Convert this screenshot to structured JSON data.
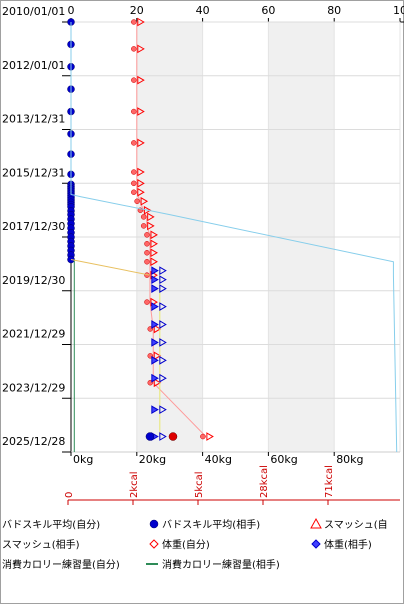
{
  "chart_data": {
    "type": "line",
    "y_axis": {
      "type": "date",
      "reversed": true,
      "range": [
        "2010/01/01",
        "2025/12/28"
      ],
      "tick_labels": [
        "2010/01/01",
        "2012/01/01",
        "2013/12/31",
        "2015/12/31",
        "2017/12/30",
        "2019/12/30",
        "2021/12/29",
        "2023/12/29",
        "2025/12/28"
      ]
    },
    "x_axis_top": {
      "range": [
        0,
        100
      ],
      "tick_labels": [
        "0",
        "20",
        "40",
        "60",
        "80",
        "10"
      ]
    },
    "x_axis_weight": {
      "range": [
        0,
        100
      ],
      "tick_labels": [
        "0kg",
        "20kg",
        "40kg",
        "60kg",
        "80kg"
      ]
    },
    "x_axis_kcal": {
      "tick_labels": [
        "0",
        "2kcal",
        "5kcal",
        "28kcal",
        "71kcal"
      ]
    },
    "shaded_bands_top": [
      [
        20,
        40
      ],
      [
        60,
        80
      ]
    ],
    "grid": true,
    "legend_position": "bottom",
    "legend": [
      "バドスキル平均(自分)",
      "バドスキル平均(相手)",
      "スマッシュ(自",
      "スマッシュ(相手)",
      "体重(自分)",
      "体重(相手)",
      "消費カロリー練習量(自分)",
      "消費カロリー練習量(相手)"
    ],
    "series": [
      {
        "name": "バドスキル平均(相手)",
        "color": "#0000cc",
        "x": [
          0,
          0,
          0,
          0,
          0,
          0,
          0,
          0,
          0,
          0,
          0,
          0,
          0,
          0,
          0,
          0,
          0,
          0,
          0,
          0,
          0,
          0,
          0,
          0,
          0,
          0,
          0,
          0,
          0,
          0,
          0
        ],
        "y": [
          "2010/01/01",
          "2010/11/01",
          "2011/09/01",
          "2012/07/01",
          "2013/05/01",
          "2014/03/01",
          "2014/12/01",
          "2015/09/01",
          "2016/01/15",
          "2016/02/15",
          "2016/03/15",
          "2016/04/15",
          "2016/05/15",
          "2016/06/15",
          "2016/07/15",
          "2016/08/15",
          "2016/09/15",
          "2016/10/15",
          "2016/11/15",
          "2017/01/10",
          "2017/03/01",
          "2017/05/01",
          "2017/07/01",
          "2017/09/01",
          "2017/11/01",
          "2018/01/01",
          "2018/03/01",
          "2018/05/01",
          "2018/07/01",
          "2018/09/01",
          "2018/11/01"
        ]
      },
      {
        "name": "スマッシュ(自",
        "color": "#ff0000",
        "x": [
          20,
          20,
          20,
          20,
          20,
          20,
          20,
          20,
          21,
          22,
          23,
          23,
          24,
          24,
          24,
          24,
          24,
          24,
          25,
          25,
          25,
          41
        ],
        "y": [
          "2010/01/01",
          "2011/01/01",
          "2012/03/01",
          "2013/05/01",
          "2014/07/01",
          "2015/08/01",
          "2016/01/01",
          "2016/05/01",
          "2016/09/01",
          "2017/01/01",
          "2017/04/01",
          "2017/08/01",
          "2017/12/01",
          "2018/04/01",
          "2018/08/01",
          "2018/12/01",
          "2019/06/01",
          "2020/06/01",
          "2021/06/01",
          "2022/06/01",
          "2023/06/01",
          "2025/06/01"
        ]
      },
      {
        "name": "体重(相手)",
        "color": "#0000cc",
        "x": [
          27,
          27,
          27,
          27,
          27,
          27,
          27,
          27,
          27,
          27
        ],
        "y": [
          "2019/04/01",
          "2019/08/01",
          "2019/12/01",
          "2020/08/01",
          "2021/04/01",
          "2021/12/01",
          "2022/08/01",
          "2023/04/01",
          "2024/06/01",
          "2025/06/01"
        ]
      },
      {
        "name": "消費カロリー練習量(自分)",
        "color": "#87ceeb",
        "x": [
          0,
          0,
          0,
          0,
          3,
          30,
          98,
          98,
          99
        ],
        "y": [
          "2010/01/01",
          "2013/06/01",
          "2015/01/01",
          "2016/06/01",
          "2016/07/01",
          "2017/03/01",
          "2018/12/01",
          "2019/06/01",
          "2025/12/28"
        ]
      },
      {
        "name": "消費カロリー練習量(相手)",
        "color": "#2e8b57",
        "x": [
          1,
          1,
          1
        ],
        "y": [
          "2018/11/01",
          "2021/06/01",
          "2025/12/28"
        ]
      }
    ]
  },
  "legend_items": [
    {
      "label": "バドスキル平均(自分)",
      "marker": "none",
      "color": "#0000cc"
    },
    {
      "label": "バドスキル平均(相手)",
      "marker": "circle",
      "color": "#0000cc"
    },
    {
      "label": "スマッシュ(自",
      "marker": "triangle",
      "color": "#ff0000"
    },
    {
      "label": "スマッシュ(相手)",
      "marker": "none",
      "color": "#ff0000"
    },
    {
      "label": "体重(自分)",
      "marker": "diamond",
      "color": "#ff0000"
    },
    {
      "label": "体重(相手)",
      "marker": "diamond",
      "color": "#0000cc"
    },
    {
      "label": "消費カロリー練習量(自分)",
      "marker": "none",
      "color": "#87ceeb"
    },
    {
      "label": "消費カロリー練習量(相手)",
      "marker": "line",
      "color": "#2e8b57"
    }
  ]
}
